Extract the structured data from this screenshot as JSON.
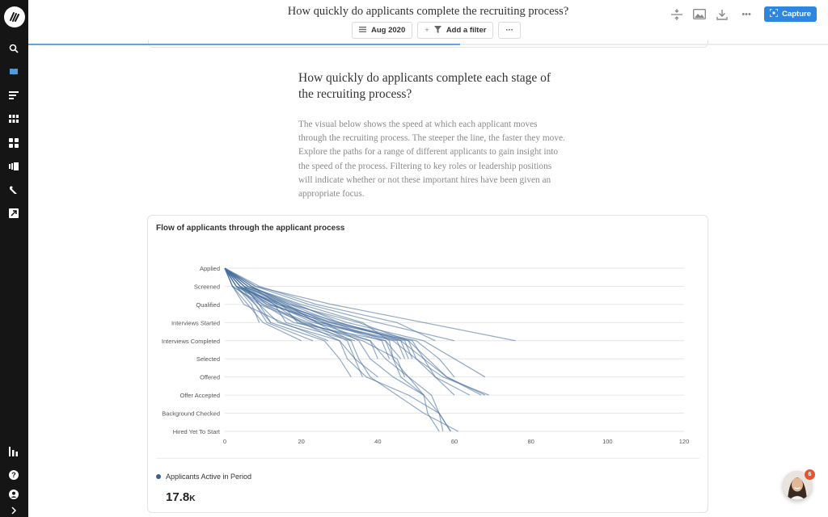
{
  "page": {
    "title": "How quickly do applicants complete the recruiting process?",
    "progress_fraction": 0.54
  },
  "toolbar": {
    "date_filter_label": "Aug 2020",
    "add_filter_label": "Add a filter",
    "more_label": "···"
  },
  "top_actions": {
    "capture_label": "Capture",
    "more_label": "•••"
  },
  "sidebar": {
    "items": [
      {
        "icon": "search-icon"
      },
      {
        "icon": "book-icon"
      },
      {
        "icon": "list-icon"
      },
      {
        "icon": "grid-icon"
      },
      {
        "icon": "dashboard-icon"
      },
      {
        "icon": "cards-icon"
      },
      {
        "icon": "pen-icon"
      },
      {
        "icon": "external-link-icon"
      },
      {
        "icon": "bar-chart-icon"
      },
      {
        "icon": "help-icon"
      },
      {
        "icon": "user-icon"
      },
      {
        "icon": "chevron-right-icon"
      }
    ]
  },
  "article": {
    "heading": "How quickly do applicants complete each stage of the recruiting process?",
    "intro": "The visual below shows the speed at which each applicant moves through the recruiting process. The steeper the line, the faster they move. Explore the paths for a range of different applicants to gain insight into the speed of the process. Filtering to key roles or leadership positions will indicate whether or not these important hires have been given an appropriate focus."
  },
  "chart_card": {
    "legend_label": "Applicants Active in Period",
    "metric_value": "17.8",
    "metric_unit": "K"
  },
  "help": {
    "badge_count": "6"
  },
  "colors": {
    "sidebar": "#151515",
    "accent": "#2e86de",
    "series": "#4a6f9f",
    "badge": "#e8542f"
  },
  "chart_data": {
    "type": "line",
    "title": "Flow of applicants through the applicant process",
    "stages": [
      "Applied",
      "Screened",
      "Qualified",
      "Interviews Started",
      "Interviews Completed",
      "Selected",
      "Offered",
      "Offer Accepted",
      "Background Checked",
      "Hired Yet To Start"
    ],
    "xlim": [
      0,
      120
    ],
    "xticks": [
      0,
      20,
      40,
      60,
      80,
      100,
      120
    ],
    "series_paths": [
      [
        [
          0,
          0
        ],
        [
          5,
          1
        ],
        [
          15,
          2
        ],
        [
          28,
          3
        ],
        [
          48,
          4
        ],
        [
          53,
          5
        ],
        [
          58,
          6
        ],
        [
          68,
          7
        ]
      ],
      [
        [
          0,
          0
        ],
        [
          4,
          1
        ],
        [
          12,
          2
        ],
        [
          25,
          3
        ],
        [
          44,
          4
        ],
        [
          50,
          5
        ],
        [
          57,
          6
        ],
        [
          69,
          7
        ]
      ],
      [
        [
          0,
          0
        ],
        [
          6,
          1
        ],
        [
          18,
          2
        ],
        [
          32,
          3
        ],
        [
          52,
          4
        ],
        [
          60,
          5
        ],
        [
          68,
          6
        ]
      ],
      [
        [
          0,
          0
        ],
        [
          3,
          1
        ],
        [
          14,
          2
        ],
        [
          30,
          3
        ],
        [
          46,
          4
        ],
        [
          52,
          5
        ],
        [
          58,
          6
        ],
        [
          67,
          7
        ]
      ],
      [
        [
          0,
          0
        ],
        [
          7,
          1
        ],
        [
          17,
          2
        ],
        [
          35,
          3
        ],
        [
          48,
          4
        ],
        [
          50,
          5
        ],
        [
          55,
          6
        ],
        [
          64,
          7
        ]
      ],
      [
        [
          0,
          0
        ],
        [
          2,
          1
        ],
        [
          10,
          2
        ],
        [
          22,
          3
        ],
        [
          32,
          4
        ],
        [
          34,
          5
        ],
        [
          40,
          6
        ]
      ],
      [
        [
          0,
          0
        ],
        [
          5,
          1
        ],
        [
          16,
          2
        ],
        [
          24,
          3
        ],
        [
          33,
          4
        ],
        [
          35,
          5
        ],
        [
          38,
          6
        ],
        [
          45,
          7
        ],
        [
          52,
          8
        ],
        [
          61,
          9
        ]
      ],
      [
        [
          0,
          0
        ],
        [
          4,
          1
        ],
        [
          13,
          2
        ],
        [
          20,
          3
        ],
        [
          30,
          4
        ],
        [
          32,
          5
        ],
        [
          37,
          6
        ],
        [
          48,
          7
        ],
        [
          56,
          8
        ],
        [
          59,
          9
        ]
      ],
      [
        [
          0,
          0
        ],
        [
          3,
          1
        ],
        [
          15,
          2
        ],
        [
          26,
          3
        ],
        [
          35,
          4
        ],
        [
          38,
          5
        ],
        [
          44,
          6
        ],
        [
          52,
          7
        ],
        [
          56,
          8
        ],
        [
          57,
          9
        ]
      ],
      [
        [
          0,
          0
        ],
        [
          6,
          1
        ],
        [
          20,
          2
        ],
        [
          36,
          3
        ],
        [
          43,
          4
        ],
        [
          44,
          5
        ],
        [
          46,
          6
        ],
        [
          52,
          7
        ],
        [
          53,
          8
        ],
        [
          56,
          9
        ]
      ],
      [
        [
          0,
          0
        ],
        [
          4,
          1
        ],
        [
          14,
          2
        ],
        [
          24,
          3
        ],
        [
          38,
          4
        ],
        [
          42,
          5
        ],
        [
          48,
          6
        ],
        [
          54,
          7
        ],
        [
          56,
          8
        ],
        [
          59,
          9
        ]
      ],
      [
        [
          0,
          0
        ],
        [
          8,
          1
        ],
        [
          28,
          2
        ],
        [
          52,
          3
        ],
        [
          76,
          4
        ]
      ],
      [
        [
          0,
          0
        ],
        [
          3,
          1
        ],
        [
          11,
          2
        ],
        [
          28,
          3
        ],
        [
          42,
          4
        ],
        [
          44,
          5
        ],
        [
          48,
          6
        ],
        [
          52,
          7
        ]
      ],
      [
        [
          0,
          0
        ],
        [
          5,
          1
        ],
        [
          9,
          2
        ],
        [
          14,
          3
        ],
        [
          30,
          4
        ],
        [
          34,
          5
        ],
        [
          36,
          6
        ]
      ],
      [
        [
          0,
          0
        ],
        [
          4,
          1
        ],
        [
          8,
          2
        ],
        [
          12,
          3
        ],
        [
          26,
          4
        ],
        [
          30,
          5
        ],
        [
          33,
          6
        ]
      ],
      [
        [
          0,
          0
        ],
        [
          7,
          1
        ],
        [
          16,
          2
        ],
        [
          27,
          3
        ],
        [
          49,
          4
        ],
        [
          52,
          5
        ],
        [
          55,
          6
        ],
        [
          60,
          7
        ]
      ],
      [
        [
          0,
          0
        ],
        [
          2,
          1
        ],
        [
          9,
          2
        ],
        [
          21,
          3
        ],
        [
          36,
          4
        ],
        [
          45,
          5
        ],
        [
          47,
          6
        ]
      ],
      [
        [
          0,
          0
        ],
        [
          5,
          1
        ],
        [
          13,
          2
        ],
        [
          16,
          3
        ],
        [
          33,
          4
        ]
      ],
      [
        [
          0,
          0
        ],
        [
          6,
          1
        ],
        [
          15,
          2
        ],
        [
          19,
          3
        ],
        [
          34,
          4
        ]
      ],
      [
        [
          0,
          0
        ],
        [
          3,
          1
        ],
        [
          12,
          2
        ],
        [
          25,
          3
        ],
        [
          46,
          4
        ],
        [
          48,
          5
        ]
      ],
      [
        [
          0,
          0
        ],
        [
          8,
          1
        ],
        [
          22,
          2
        ],
        [
          40,
          3
        ],
        [
          60,
          4
        ]
      ],
      [
        [
          0,
          0
        ],
        [
          5,
          1
        ],
        [
          11,
          2
        ],
        [
          20,
          3
        ],
        [
          38,
          4
        ],
        [
          40,
          5
        ]
      ],
      [
        [
          0,
          0
        ],
        [
          4,
          1
        ],
        [
          10,
          2
        ],
        [
          18,
          3
        ],
        [
          42,
          4
        ],
        [
          46,
          5
        ]
      ],
      [
        [
          0,
          0
        ],
        [
          6,
          1
        ],
        [
          19,
          2
        ],
        [
          30,
          3
        ],
        [
          47,
          4
        ],
        [
          49,
          5
        ]
      ],
      [
        [
          0,
          0
        ],
        [
          3,
          1
        ],
        [
          8,
          2
        ],
        [
          11,
          3
        ],
        [
          23,
          4
        ]
      ],
      [
        [
          0,
          0
        ],
        [
          7,
          1
        ],
        [
          14,
          2
        ],
        [
          26,
          3
        ],
        [
          41,
          4
        ],
        [
          43,
          5
        ]
      ],
      [
        [
          0,
          0
        ],
        [
          2,
          1
        ],
        [
          6,
          2
        ],
        [
          10,
          3
        ],
        [
          20,
          4
        ]
      ],
      [
        [
          0,
          0
        ],
        [
          4,
          1
        ],
        [
          13,
          2
        ],
        [
          23,
          3
        ],
        [
          45,
          4
        ],
        [
          47,
          5
        ]
      ],
      [
        [
          0,
          0
        ],
        [
          5,
          1
        ],
        [
          17,
          2
        ],
        [
          29,
          3
        ],
        [
          50,
          4
        ],
        [
          56,
          5
        ],
        [
          60,
          6
        ]
      ],
      [
        [
          0,
          0
        ],
        [
          9,
          1
        ],
        [
          24,
          2
        ],
        [
          45,
          3
        ],
        [
          55,
          4
        ]
      ],
      [
        [
          0,
          0
        ],
        [
          3,
          1
        ],
        [
          7,
          2
        ],
        [
          9,
          3
        ]
      ],
      [
        [
          0,
          0
        ],
        [
          5,
          1
        ],
        [
          9,
          2
        ],
        [
          12,
          3
        ]
      ],
      [
        [
          0,
          0
        ],
        [
          2,
          1
        ],
        [
          5,
          2
        ],
        [
          15,
          3
        ],
        [
          27,
          4
        ]
      ]
    ]
  }
}
